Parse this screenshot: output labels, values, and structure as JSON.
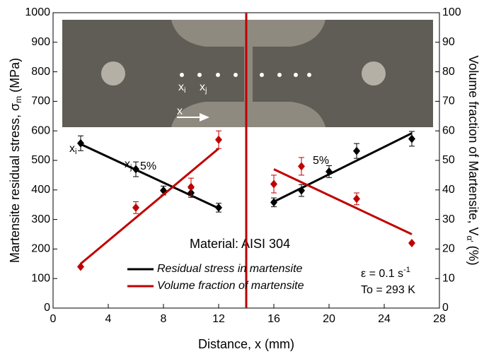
{
  "chart_data": {
    "type": "scatter",
    "x_label": "Distance, x (mm)",
    "y_label": {
      "text": "Martensite residual stress, σ",
      "sub": "m",
      "tail": " (MPa)"
    },
    "y2_label": {
      "text": "Volume fraction of Martensite, V",
      "sub": "α'",
      "tail": " (%)"
    },
    "xlim": [
      0,
      28
    ],
    "xticks": [
      0,
      4,
      8,
      12,
      16,
      20,
      24,
      28
    ],
    "ylim": [
      0,
      1000
    ],
    "yticks": [
      0,
      100,
      200,
      300,
      400,
      500,
      600,
      700,
      800,
      900,
      1000
    ],
    "y2lim": [
      0,
      100
    ],
    "y2ticks": [
      0,
      10,
      20,
      30,
      40,
      50,
      60,
      70,
      80,
      90,
      100
    ],
    "vline": {
      "x": 14,
      "color": "#c00000"
    },
    "series": [
      {
        "name": "Residual stress in martensite",
        "color": "#000000",
        "x": [
          2,
          6,
          8,
          10,
          12,
          16,
          18,
          20,
          22,
          26
        ],
        "values": [
          558,
          470,
          398,
          390,
          340,
          358,
          398,
          462,
          532,
          573
        ],
        "errors": [
          25,
          25,
          15,
          15,
          15,
          15,
          20,
          20,
          25,
          25
        ],
        "fits": [
          {
            "x": [
              2,
              12
            ],
            "values": [
              555,
              338
            ]
          },
          {
            "x": [
              16,
              26
            ],
            "values": [
              360,
              592
            ]
          }
        ]
      },
      {
        "name": "Volume fraction of martensite",
        "color": "#c00000",
        "axis": "y2",
        "x": [
          2,
          6,
          10,
          12,
          16,
          18,
          22,
          26
        ],
        "values": [
          14,
          34,
          41,
          57,
          42,
          48,
          37,
          22
        ],
        "errors": [
          0,
          2,
          3,
          3,
          3,
          3,
          2,
          0
        ],
        "fits": [
          {
            "x": [
              2,
              12
            ],
            "values": [
              15,
              54
            ]
          },
          {
            "x": [
              16,
              26
            ],
            "values": [
              47,
              25
            ]
          }
        ]
      }
    ],
    "annotations": {
      "material": "Material: AISI 304",
      "strain_rate": {
        "text": "ε = 0.1 s",
        "sup": "-1"
      },
      "temperature": "To = 293 K",
      "pct_left": "5%",
      "pct_right": "5%",
      "xi": {
        "text": "x",
        "sub": "i"
      },
      "xj": {
        "text": "x",
        "sub": "j"
      },
      "x": "x"
    }
  }
}
